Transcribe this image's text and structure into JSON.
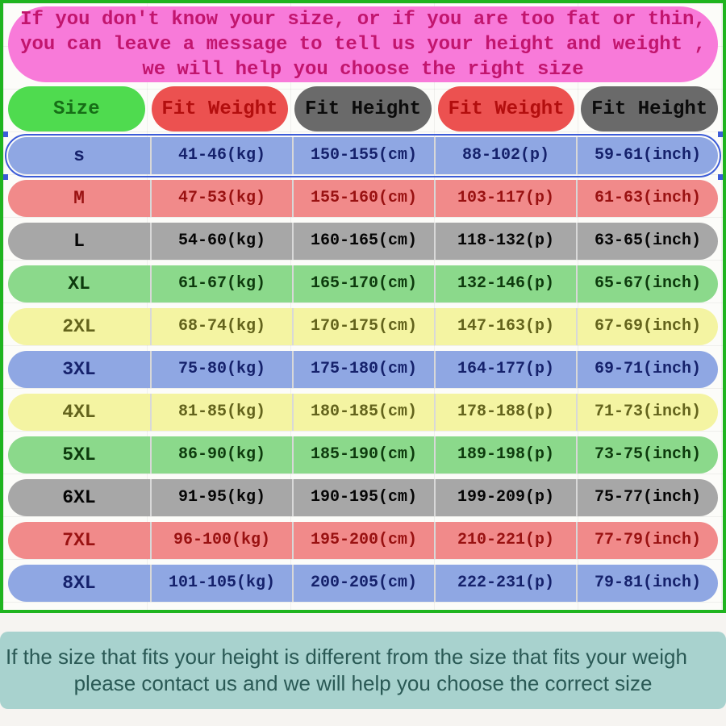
{
  "top_banner": {
    "lines": [
      "If you don't know your size, or if you are too fat or thin,",
      "you can leave a message to tell us your height and weight ,",
      "we will help you choose the right size"
    ],
    "bg_color": "#f87ad9",
    "text_color": "#c2156e"
  },
  "chart_data": {
    "type": "table",
    "title": "Garment size chart",
    "columns": [
      "Size",
      "Fit Weight",
      "Fit Height",
      "Fit Weight",
      "Fit Height"
    ],
    "rows": [
      [
        "s",
        "41-46(kg)",
        "150-155(cm)",
        "88-102(p)",
        "59-61(inch)"
      ],
      [
        "M",
        "47-53(kg)",
        "155-160(cm)",
        "103-117(p)",
        "61-63(inch)"
      ],
      [
        "L",
        "54-60(kg)",
        "160-165(cm)",
        "118-132(p)",
        "63-65(inch)"
      ],
      [
        "XL",
        "61-67(kg)",
        "165-170(cm)",
        "132-146(p)",
        "65-67(inch)"
      ],
      [
        "2XL",
        "68-74(kg)",
        "170-175(cm)",
        "147-163(p)",
        "67-69(inch)"
      ],
      [
        "3XL",
        "75-80(kg)",
        "175-180(cm)",
        "164-177(p)",
        "69-71(inch)"
      ],
      [
        "4XL",
        "81-85(kg)",
        "180-185(cm)",
        "178-188(p)",
        "71-73(inch)"
      ],
      [
        "5XL",
        "86-90(kg)",
        "185-190(cm)",
        "189-198(p)",
        "73-75(inch)"
      ],
      [
        "6XL",
        "91-95(kg)",
        "190-195(cm)",
        "199-209(p)",
        "75-77(inch)"
      ],
      [
        "7XL",
        "96-100(kg)",
        "195-200(cm)",
        "210-221(p)",
        "77-79(inch)"
      ],
      [
        "8XL",
        "101-105(kg)",
        "200-205(cm)",
        "222-231(p)",
        "79-81(inch)"
      ]
    ]
  },
  "table": {
    "border_color": "#1fb41f",
    "divider_color": "#d8d8d8",
    "selection_color": "#3c5cd8",
    "selected_row": "s",
    "header_styles": [
      {
        "bg": "#4fdb4f",
        "text": "#176e17"
      },
      {
        "bg": "#ec5150",
        "text": "#b30e0e"
      },
      {
        "bg": "#6a6a6a",
        "text": "#0b0b0b"
      },
      {
        "bg": "#ec5150",
        "text": "#b30e0e"
      },
      {
        "bg": "#6a6a6a",
        "text": "#0b0b0b"
      }
    ],
    "row_styles": [
      {
        "size": "s",
        "bg": "#8fa7e3",
        "text": "#15216b",
        "selected": true
      },
      {
        "size": "M",
        "bg": "#f18a8a",
        "text": "#991111",
        "selected": false
      },
      {
        "size": "L",
        "bg": "#a7a7a7",
        "text": "#050505",
        "selected": false
      },
      {
        "size": "XL",
        "bg": "#8bd98b",
        "text": "#0d3a0d",
        "selected": false
      },
      {
        "size": "2XL",
        "bg": "#f4f4a2",
        "text": "#63631c",
        "selected": false
      },
      {
        "size": "3XL",
        "bg": "#8fa7e3",
        "text": "#15216b",
        "selected": false
      },
      {
        "size": "4XL",
        "bg": "#f4f4a2",
        "text": "#63631c",
        "selected": false
      },
      {
        "size": "5XL",
        "bg": "#8bd98b",
        "text": "#0d3a0d",
        "selected": false
      },
      {
        "size": "6XL",
        "bg": "#a7a7a7",
        "text": "#050505",
        "selected": false
      },
      {
        "size": "7XL",
        "bg": "#f18a8a",
        "text": "#991111",
        "selected": false
      },
      {
        "size": "8XL",
        "bg": "#8fa7e3",
        "text": "#15216b",
        "selected": false
      }
    ]
  },
  "bottom_banner": {
    "lines": [
      "If the size that fits your height is different from the size that fits your weigh",
      "please contact us and we will help you choose the correct size"
    ],
    "bg_color": "#a8d2ce",
    "text_color": "#2a5955"
  }
}
